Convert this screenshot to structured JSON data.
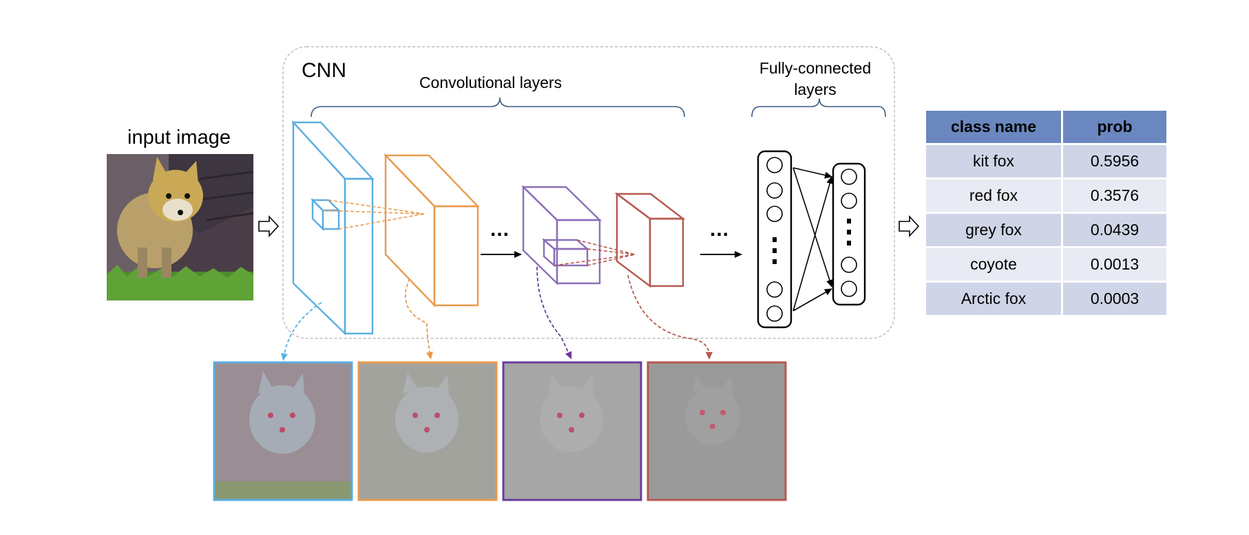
{
  "input_title": "input image",
  "cnn": {
    "title": "CNN",
    "conv_label": "Convolutional layers",
    "fc_label": "Fully-connected layers",
    "ellipsis": "..."
  },
  "colors": {
    "layer1": "#5aaee0",
    "layer2": "#e89a4c",
    "layer3": "#8a6fb8",
    "layer4": "#b5584e",
    "map3_border": "#6a3c9e",
    "bracket": "#3d5a80",
    "table_header": "#6a88bf",
    "row_dark": "#cfd5e6",
    "row_light": "#e8ebf3"
  },
  "table": {
    "headers": [
      "class name",
      "prob"
    ],
    "rows": [
      {
        "name": "kit fox",
        "prob": "0.5956"
      },
      {
        "name": "red fox",
        "prob": "0.3576"
      },
      {
        "name": "grey fox",
        "prob": "0.0439"
      },
      {
        "name": "coyote",
        "prob": "0.0013"
      },
      {
        "name": "Arctic fox",
        "prob": "0.0003"
      }
    ]
  }
}
